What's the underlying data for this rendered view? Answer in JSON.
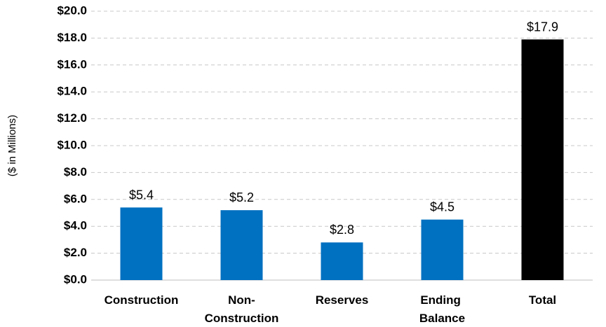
{
  "chart_data": {
    "type": "bar",
    "y_axis_label": "($ in Millions)",
    "categories": [
      "Construction",
      "Non-Construction",
      "Reserves",
      "Ending Balance",
      "Total"
    ],
    "values": [
      5.4,
      5.2,
      2.8,
      4.5,
      17.9
    ],
    "value_labels": [
      "$5.4",
      "$5.2",
      "$2.8",
      "$4.5",
      "$17.9"
    ],
    "colors": [
      "#0070c0",
      "#0070c0",
      "#0070c0",
      "#0070c0",
      "#000000"
    ],
    "ylim": [
      0,
      20
    ],
    "yticks": [
      {
        "value": 0,
        "label": "$0.0"
      },
      {
        "value": 2,
        "label": "$2.0"
      },
      {
        "value": 4,
        "label": "$4.0"
      },
      {
        "value": 6,
        "label": "$6.0"
      },
      {
        "value": 8,
        "label": "$8.0"
      },
      {
        "value": 10,
        "label": "$10.0"
      },
      {
        "value": 12,
        "label": "$12.0"
      },
      {
        "value": 14,
        "label": "$14.0"
      },
      {
        "value": 16,
        "label": "$16.0"
      },
      {
        "value": 18,
        "label": "$18.0"
      },
      {
        "value": 20,
        "label": "$20.0"
      }
    ],
    "grid": true
  }
}
